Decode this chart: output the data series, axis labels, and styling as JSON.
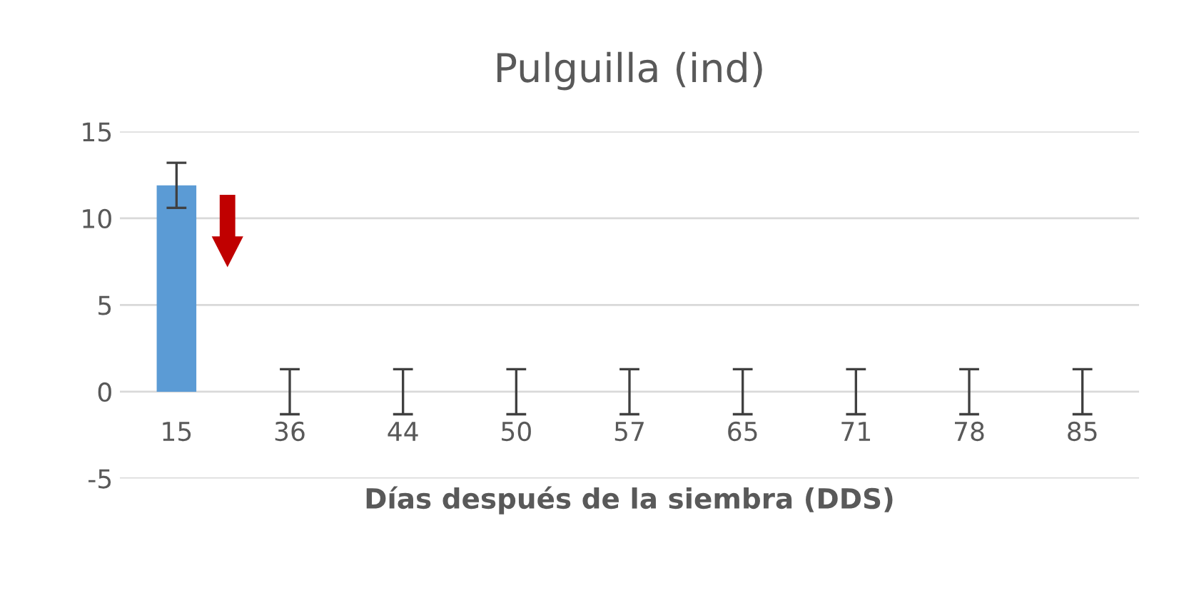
{
  "chart_data": {
    "type": "bar",
    "title": "Pulguilla (ind)",
    "xlabel": "Días después de la siembra (DDS)",
    "categories": [
      "15",
      "36",
      "44",
      "50",
      "57",
      "65",
      "71",
      "78",
      "85"
    ],
    "values": [
      11.9,
      0,
      0,
      0,
      0,
      0,
      0,
      0,
      0
    ],
    "errors": [
      1.3,
      1.3,
      1.3,
      1.3,
      1.3,
      1.3,
      1.3,
      1.3,
      1.3
    ],
    "color": "#5b9bd5",
    "ylim": [
      -5,
      15
    ],
    "yticks": [
      -5,
      0,
      5,
      10,
      15
    ],
    "grid": "y"
  }
}
